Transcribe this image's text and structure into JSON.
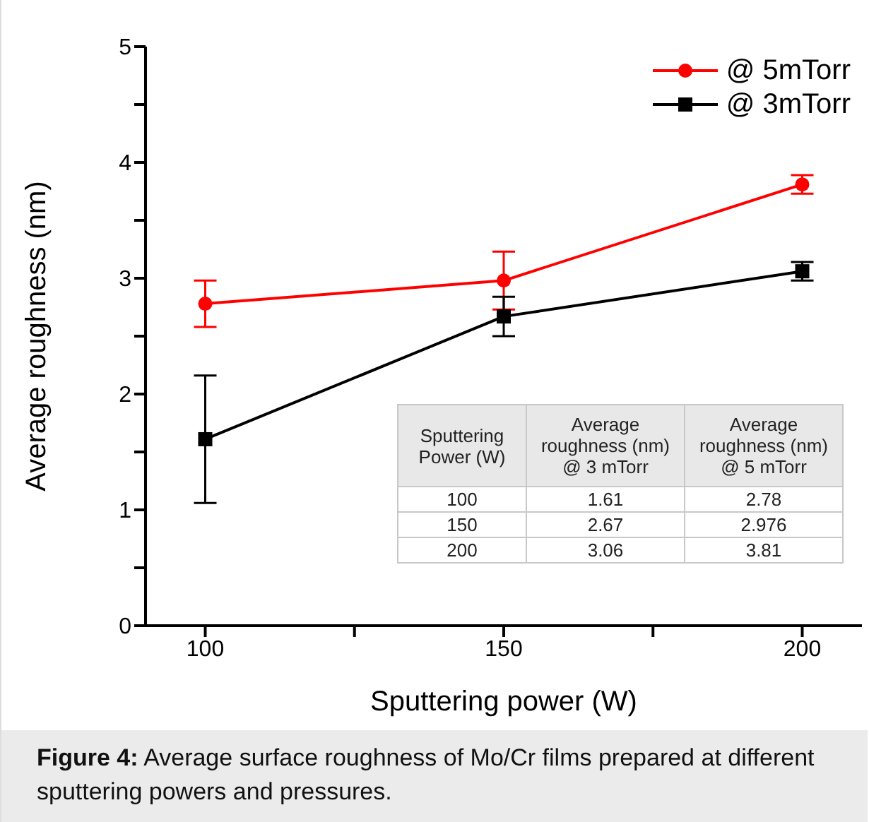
{
  "chart_data": {
    "type": "line",
    "xlabel": "Sputtering power (W)",
    "ylabel": "Average roughness (nm)",
    "x": [
      100,
      150,
      200
    ],
    "series": [
      {
        "name": "@ 5mTorr",
        "color": "#ff0000",
        "marker": "circle",
        "values": [
          2.78,
          2.98,
          3.81
        ],
        "errors": [
          0.2,
          0.25,
          0.08
        ]
      },
      {
        "name": "@ 3mTorr",
        "color": "#000000",
        "marker": "square",
        "values": [
          1.61,
          2.67,
          3.06
        ],
        "errors": [
          0.55,
          0.17,
          0.08
        ]
      }
    ],
    "xlim": [
      90,
      210
    ],
    "xticks": [
      100,
      {
        "value": 125,
        "label": null
      },
      150,
      {
        "value": 175,
        "label": null
      },
      200
    ],
    "ylim": [
      0,
      5
    ],
    "yticks": [
      0,
      {
        "value": 0.5,
        "label": null
      },
      1,
      {
        "value": 1.5,
        "label": null
      },
      2,
      {
        "value": 2.5,
        "label": null
      },
      3,
      {
        "value": 3.5,
        "label": null
      },
      4,
      {
        "value": 4.5,
        "label": null
      },
      5
    ],
    "grid": false,
    "legend": "top right",
    "annotations": [
      "Sputtering Power (W)",
      "Average roughness (nm) @ 3 mTorr",
      "Average roughness (nm) @ 5 mTorr",
      "100",
      "1.61",
      "2.78",
      "150",
      "2.67",
      "2.976",
      "200",
      "3.06",
      "3.81",
      "Figure 4: Average surface roughness of Mo/Cr films prepared at different sputtering powers and pressures."
    ]
  }
}
